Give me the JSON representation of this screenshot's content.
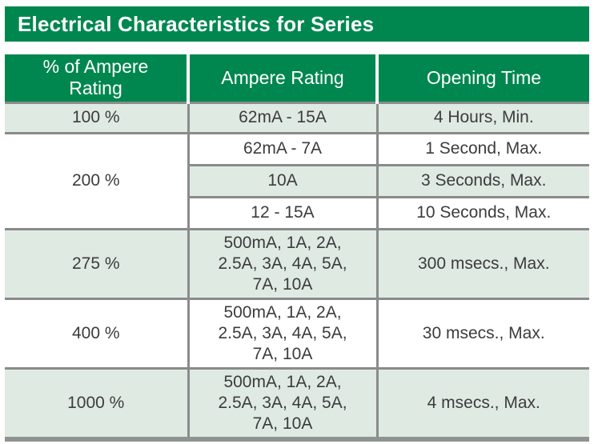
{
  "title": "Electrical Characteristics for Series",
  "colors": {
    "green": "#00874F",
    "tint": "#DFEAE3",
    "border": "#8B8B8B",
    "bottom_bar": "#8E938F",
    "text": "#3C3C3C"
  },
  "table": {
    "headers": {
      "pct": "% of Ampere\nRating",
      "ampere": "Ampere Rating",
      "time": "Opening Time"
    },
    "rows": [
      {
        "pct": "100 %",
        "ampere": "62mA - 15A",
        "time": "4 Hours, Min."
      },
      {
        "pct": "200 %",
        "ampere": "62mA - 7A",
        "time": "1 Second, Max."
      },
      {
        "ampere": "10A",
        "time": "3 Seconds, Max."
      },
      {
        "ampere": "12 - 15A",
        "time": "10 Seconds, Max."
      },
      {
        "pct": "275 %",
        "ampere": "500mA, 1A, 2A,\n2.5A, 3A, 4A, 5A,\n7A, 10A",
        "time": "300 msecs., Max."
      },
      {
        "pct": "400 %",
        "ampere": "500mA, 1A, 2A,\n2.5A, 3A, 4A, 5A,\n7A, 10A",
        "time": "30 msecs., Max."
      },
      {
        "pct": "1000 %",
        "ampere": "500mA, 1A, 2A,\n2.5A, 3A, 4A, 5A,\n7A, 10A",
        "time": "4 msecs., Max."
      }
    ]
  }
}
